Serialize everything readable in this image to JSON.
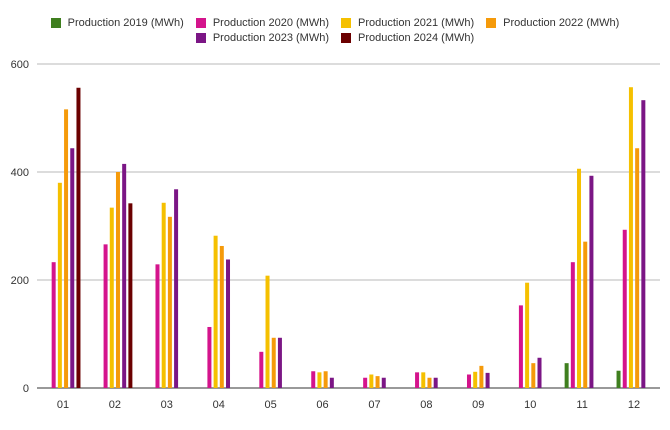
{
  "chart_data": {
    "type": "bar",
    "categories": [
      "01",
      "02",
      "03",
      "04",
      "05",
      "06",
      "07",
      "08",
      "09",
      "10",
      "11",
      "12"
    ],
    "y_ticks": [
      0,
      200,
      400,
      600
    ],
    "ylim": [
      0,
      600
    ],
    "grid": true,
    "legend_position": "top",
    "series": [
      {
        "name": "Production 2019 (MWh)",
        "color": "#3f7f1f",
        "values": [
          null,
          null,
          null,
          null,
          null,
          null,
          null,
          null,
          null,
          null,
          46,
          32
        ]
      },
      {
        "name": "Production 2020 (MWh)",
        "color": "#d4148c",
        "values": [
          233,
          266,
          229,
          113,
          67,
          31,
          19,
          29,
          25,
          153,
          233,
          293
        ]
      },
      {
        "name": "Production 2021 (MWh)",
        "color": "#f5c000",
        "values": [
          380,
          334,
          343,
          282,
          208,
          29,
          25,
          29,
          30,
          195,
          406,
          557
        ]
      },
      {
        "name": "Production 2022 (MWh)",
        "color": "#f59a0a",
        "values": [
          516,
          400,
          317,
          263,
          93,
          31,
          22,
          19,
          41,
          46,
          271,
          444
        ]
      },
      {
        "name": "Production 2023 (MWh)",
        "color": "#7b1685",
        "values": [
          444,
          415,
          368,
          238,
          93,
          19,
          19,
          19,
          28,
          56,
          393,
          533
        ]
      },
      {
        "name": "Production 2024 (MWh)",
        "color": "#6b0000",
        "values": [
          556,
          342,
          null,
          null,
          null,
          null,
          null,
          null,
          null,
          null,
          null,
          null
        ]
      }
    ]
  }
}
